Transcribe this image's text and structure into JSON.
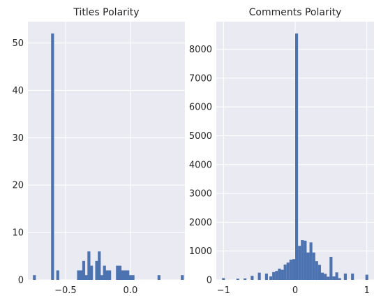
{
  "chart_data": [
    {
      "type": "bar",
      "title": "Titles Polarity",
      "xlabel": "",
      "ylabel": "",
      "xlim": [
        -0.79,
        0.42
      ],
      "ylim": [
        0,
        54.5
      ],
      "grid": true,
      "x_ticks": [
        -0.5,
        0.0
      ],
      "x_tick_labels": [
        "−0.5",
        "0.0"
      ],
      "y_ticks": [
        0,
        10,
        20,
        30,
        40,
        50
      ],
      "y_tick_labels": [
        "0",
        "10",
        "20",
        "30",
        "40",
        "50"
      ],
      "bin_width": 0.0225,
      "bins_x": [
        -0.74,
        -0.6,
        -0.56,
        -0.4,
        -0.38,
        -0.36,
        -0.34,
        -0.32,
        -0.3,
        -0.26,
        -0.24,
        -0.22,
        -0.2,
        -0.18,
        -0.16,
        -0.1,
        -0.08,
        -0.06,
        -0.04,
        -0.02,
        0.0,
        0.02,
        0.22,
        0.4
      ],
      "values": [
        1,
        52,
        2,
        2,
        2,
        4,
        1,
        6,
        3,
        4,
        6,
        1,
        3,
        2,
        2,
        3,
        3,
        2,
        2,
        2,
        1,
        1,
        1,
        1
      ]
    },
    {
      "type": "bar",
      "title": "Comments Polarity",
      "xlabel": "",
      "ylabel": "",
      "xlim": [
        -1.1,
        1.1
      ],
      "ylim": [
        0,
        8960
      ],
      "grid": true,
      "x_ticks": [
        -1,
        0,
        1
      ],
      "x_tick_labels": [
        "−1",
        "0",
        "1"
      ],
      "y_ticks": [
        0,
        1000,
        2000,
        3000,
        4000,
        5000,
        6000,
        7000,
        8000
      ],
      "y_tick_labels": [
        "0",
        "1000",
        "2000",
        "3000",
        "4000",
        "5000",
        "6000",
        "7000",
        "8000"
      ],
      "bin_width": 0.04,
      "bins_x": [
        -1.0,
        -0.8,
        -0.7,
        -0.6,
        -0.5,
        -0.4,
        -0.34,
        -0.3,
        -0.26,
        -0.22,
        -0.18,
        -0.14,
        -0.1,
        -0.06,
        -0.02,
        0.02,
        0.06,
        0.1,
        0.14,
        0.18,
        0.22,
        0.26,
        0.3,
        0.34,
        0.38,
        0.42,
        0.46,
        0.5,
        0.54,
        0.58,
        0.62,
        0.7,
        0.8,
        1.0
      ],
      "values": [
        60,
        40,
        50,
        140,
        250,
        220,
        120,
        270,
        310,
        390,
        350,
        530,
        600,
        700,
        720,
        8550,
        1180,
        1380,
        1360,
        950,
        1300,
        950,
        650,
        520,
        250,
        210,
        110,
        800,
        120,
        260,
        60,
        220,
        220,
        180
      ]
    }
  ]
}
